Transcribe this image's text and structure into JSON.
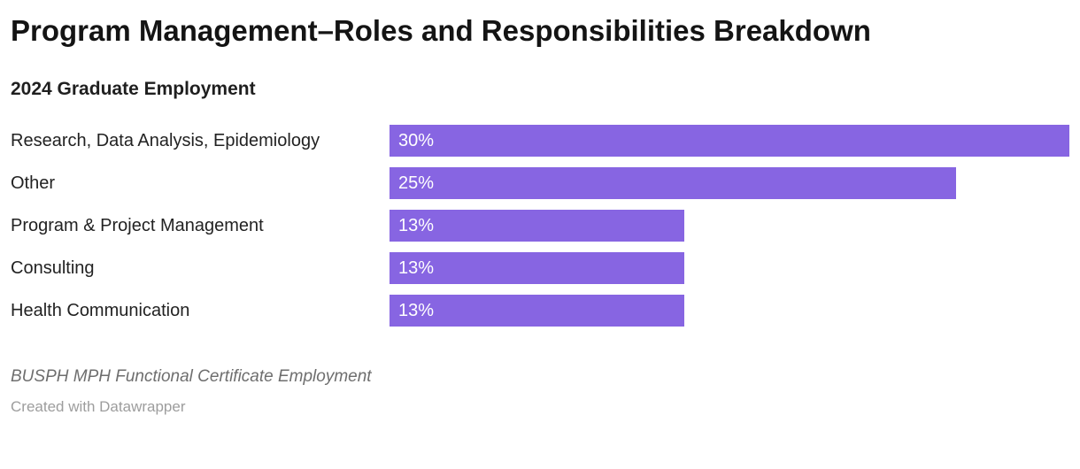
{
  "page": {
    "title": "Program Management–Roles and Responsibilities Breakdown",
    "subtitle": "2024 Graduate Employment",
    "source_note": "BUSPH MPH Functional Certificate Employment",
    "attribution": "Created with Datawrapper"
  },
  "chart_data": {
    "type": "bar",
    "orientation": "horizontal",
    "title": "Program Management–Roles and Responsibilities Breakdown",
    "subtitle": "2024 Graduate Employment",
    "categories": [
      "Research, Data Analysis, Epidemiology",
      "Other",
      "Program & Project Management",
      "Consulting",
      "Health Communication"
    ],
    "values": [
      30,
      25,
      13,
      13,
      13
    ],
    "value_labels": [
      "30%",
      "25%",
      "13%",
      "13%",
      "13%"
    ],
    "unit": "%",
    "xlim": [
      0,
      30
    ],
    "grid": false,
    "legend": false,
    "bar_color": "#8765e2",
    "value_label_color": "#ffffff",
    "category_label_color": "#222222",
    "note": "BUSPH MPH Functional Certificate Employment",
    "attribution": "Created with Datawrapper"
  }
}
